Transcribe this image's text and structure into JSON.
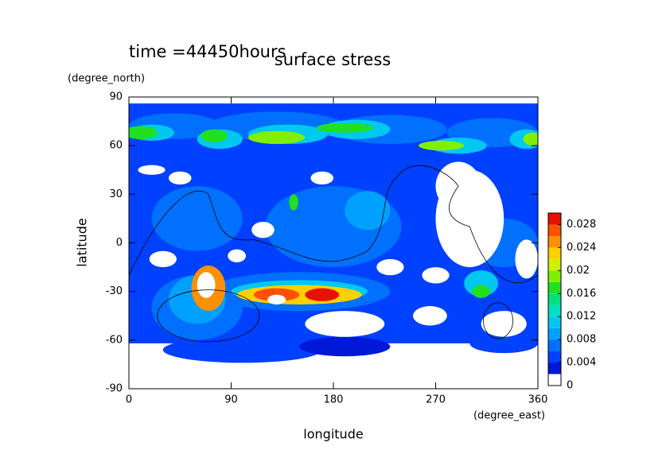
{
  "chart_data": {
    "type": "contour",
    "subtitle": "time =44450hours",
    "title": "surface stress",
    "x_label": "longitude",
    "x_unit": "(degree_east)",
    "y_label": "latitude",
    "y_unit": "(degree_north)",
    "xlim": [
      0,
      360
    ],
    "xticks": [
      0,
      90,
      180,
      270,
      360
    ],
    "ylim": [
      -90,
      90
    ],
    "yticks": [
      -90,
      -60,
      -30,
      0,
      30,
      60,
      90
    ],
    "colorbar": {
      "levels": [
        0,
        0.002,
        0.004,
        0.006,
        0.008,
        0.01,
        0.012,
        0.014,
        0.016,
        0.018,
        0.02,
        0.022,
        0.024,
        0.026,
        0.028,
        0.03
      ],
      "colors": [
        "#ffffff",
        "#0018d8",
        "#0040ff",
        "#0070ff",
        "#00a0ff",
        "#00c8f0",
        "#00e0c0",
        "#00e080",
        "#20e020",
        "#80f000",
        "#d0f000",
        "#ffd000",
        "#ff9000",
        "#ff5000",
        "#e81000"
      ],
      "ylim": [
        0,
        0.03
      ],
      "yticks": [
        0,
        0.004,
        0.008,
        0.012,
        0.016,
        0.02,
        0.024,
        0.028
      ]
    }
  }
}
